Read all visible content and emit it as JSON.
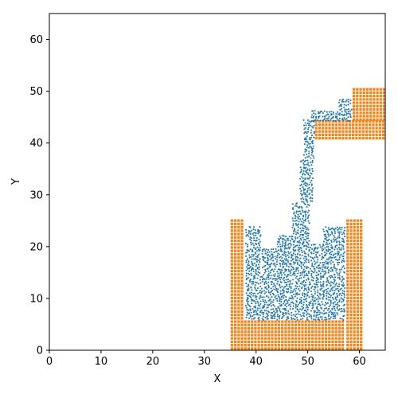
{
  "chart_data": {
    "type": "scatter",
    "title": "",
    "xlabel": "X",
    "ylabel": "Y",
    "xlim": [
      0,
      65
    ],
    "ylim": [
      0,
      65
    ],
    "xticks": [
      0,
      10,
      20,
      30,
      40,
      50,
      60
    ],
    "yticks": [
      0,
      10,
      20,
      30,
      40,
      50,
      60
    ],
    "grid": false,
    "colors": {
      "fluid": "#1f77b4",
      "boundary": "#ff7f0e"
    },
    "boundary": {
      "spacing": 0.65,
      "regions": [
        {
          "label": "container-left-wall",
          "x": [
            35,
            37.6
          ],
          "y": [
            0,
            25.4
          ]
        },
        {
          "label": "container-right-wall",
          "x": [
            57.4,
            60.5
          ],
          "y": [
            0,
            25.4
          ]
        },
        {
          "label": "container-floor",
          "x": [
            37.6,
            57.4
          ],
          "y": [
            0,
            5.6
          ]
        },
        {
          "label": "spout-floor",
          "x": [
            51.3,
            64.8
          ],
          "y": [
            40.6,
            44.2
          ]
        },
        {
          "label": "spout-back-wall",
          "x": [
            58.6,
            64.8
          ],
          "y": [
            44.2,
            50.5
          ]
        }
      ]
    },
    "fluid": {
      "spacing": 0.42,
      "regions": [
        {
          "label": "pool-left",
          "x": [
            38,
            41
          ],
          "y": [
            5.8,
            24
          ]
        },
        {
          "label": "pool-center-left",
          "x": [
            41,
            44
          ],
          "y": [
            5.8,
            19.5
          ]
        },
        {
          "label": "pool-center",
          "x": [
            44,
            47
          ],
          "y": [
            5.8,
            22
          ]
        },
        {
          "label": "pool-under-stream",
          "x": [
            47,
            50.5
          ],
          "y": [
            5.8,
            28.5
          ]
        },
        {
          "label": "pool-center-right",
          "x": [
            50.5,
            53
          ],
          "y": [
            5.8,
            20.5
          ]
        },
        {
          "label": "pool-right",
          "x": [
            53,
            57.2
          ],
          "y": [
            5.8,
            23.8
          ]
        },
        {
          "label": "stream-lower",
          "x": [
            48.5,
            51
          ],
          "y": [
            28.5,
            37
          ]
        },
        {
          "label": "stream-upper",
          "x": [
            49.2,
            51.4
          ],
          "y": [
            37,
            44.5
          ]
        },
        {
          "label": "spout-top",
          "x": [
            50.5,
            58.6
          ],
          "y": [
            44.2,
            46.4
          ]
        },
        {
          "label": "spout-lip",
          "x": [
            56,
            58.6
          ],
          "y": [
            46.4,
            48.6
          ]
        }
      ]
    }
  }
}
